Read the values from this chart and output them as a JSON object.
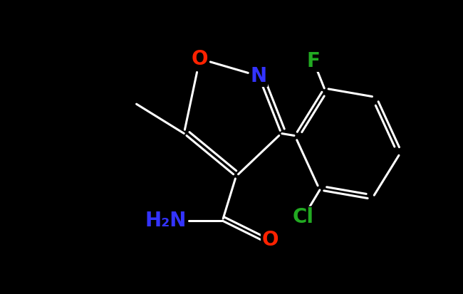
{
  "background_color": "#000000",
  "fig_width": 6.5,
  "fig_height": 4.13,
  "dpi": 100,
  "line_color": "#ffffff",
  "line_width": 2.2,
  "colors": {
    "O": "#ff2200",
    "N": "#3333ff",
    "F": "#22aa22",
    "Cl": "#22aa22",
    "C": "#ffffff"
  },
  "fontsize": 19
}
